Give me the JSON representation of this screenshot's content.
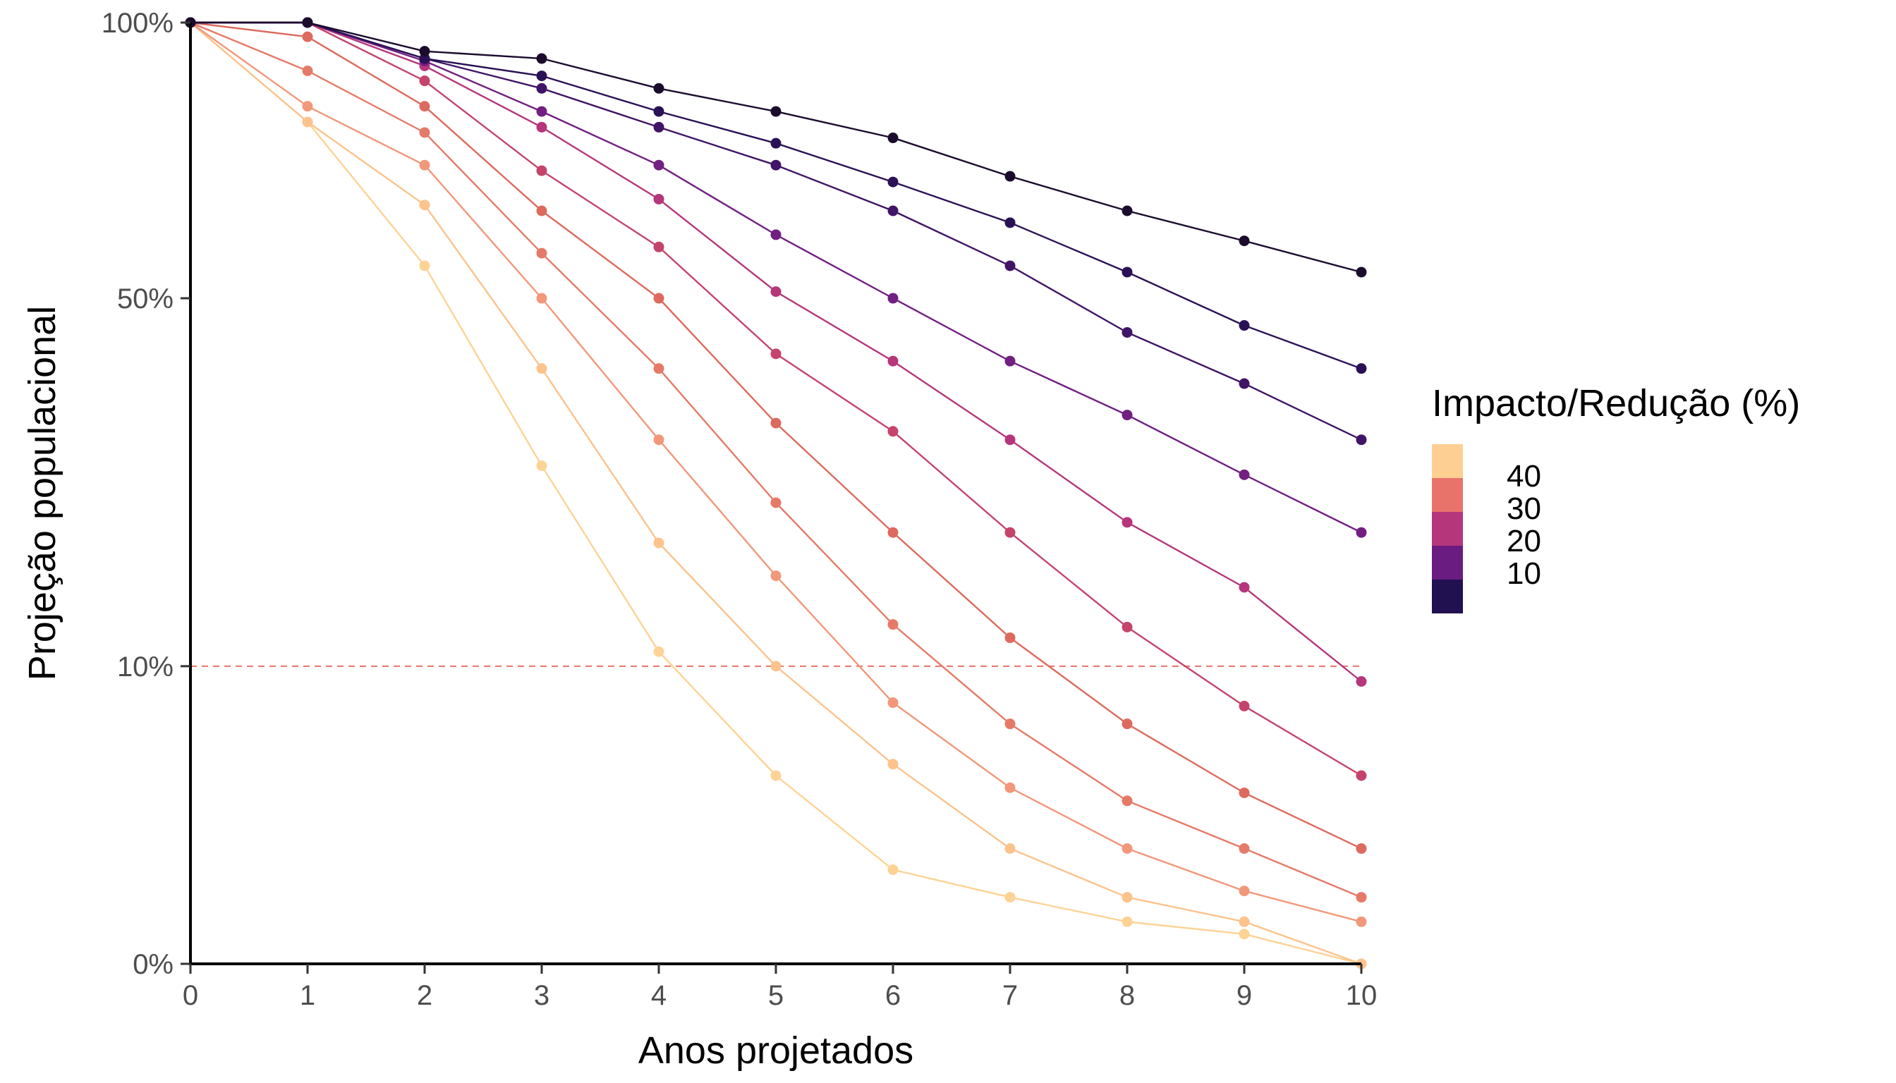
{
  "chart_data": {
    "type": "line",
    "xlabel": "Anos projetados",
    "ylabel": "Projeção populacional",
    "x": [
      0,
      1,
      2,
      3,
      4,
      5,
      6,
      7,
      8,
      9,
      10
    ],
    "xlim": [
      0,
      10
    ],
    "ylim": [
      0,
      100
    ],
    "x_ticks": [
      "0",
      "1",
      "2",
      "3",
      "4",
      "5",
      "6",
      "7",
      "8",
      "9",
      "10"
    ],
    "y_ticks": [
      {
        "value": 0,
        "label": "0%"
      },
      {
        "value": 10,
        "label": "10%"
      },
      {
        "value": 50,
        "label": "50%"
      },
      {
        "value": 100,
        "label": "100%"
      }
    ],
    "y_scale": "sqrt",
    "reference_line": {
      "y": 10,
      "style": "dashed",
      "color": "#e8736b"
    },
    "grid": false,
    "legend": {
      "title": "Impacto/Redução (%)",
      "placement": "right",
      "labels": [
        "40",
        "30",
        "20",
        "10"
      ],
      "colors": [
        "#fecf92",
        "#e8736b",
        "#b5367a",
        "#6a1c81",
        "#221150"
      ]
    },
    "series": [
      {
        "color": "#fdd395",
        "values": [
          100,
          80,
          55,
          28,
          11,
          4,
          1,
          0.5,
          0.2,
          0.1,
          0
        ]
      },
      {
        "color": "#fcc38d",
        "values": [
          100,
          80,
          65,
          40,
          20,
          10,
          4.5,
          1.5,
          0.5,
          0.2,
          0
        ]
      },
      {
        "color": "#f1987a",
        "values": [
          100,
          83,
          72,
          50,
          31,
          17,
          7.7,
          3.5,
          1.5,
          0.6,
          0.2
        ]
      },
      {
        "color": "#e57a68",
        "values": [
          100,
          90,
          78,
          57,
          40,
          24,
          13,
          6.5,
          3,
          1.5,
          0.5
        ]
      },
      {
        "color": "#dd6a5e",
        "values": [
          100,
          97,
          83,
          64,
          50,
          33,
          21,
          12,
          6.5,
          3.3,
          1.5
        ]
      },
      {
        "color": "#c4446b",
        "values": [
          100,
          100,
          88,
          71,
          58,
          42,
          32,
          21,
          12.8,
          7.5,
          4
        ]
      },
      {
        "color": "#b5367a",
        "values": [
          100,
          100,
          91,
          79,
          66,
          51,
          41,
          31,
          22,
          16,
          9
        ]
      },
      {
        "color": "#711f81",
        "values": [
          100,
          100,
          92,
          82,
          72,
          60,
          50,
          41,
          34,
          27,
          21
        ]
      },
      {
        "color": "#401466",
        "values": [
          100,
          100,
          92.5,
          86.5,
          79,
          72,
          64,
          55,
          45,
          38,
          31
        ]
      },
      {
        "color": "#2a1156",
        "values": [
          100,
          100,
          92.5,
          89,
          82,
          76,
          69,
          62,
          54,
          46,
          40
        ]
      },
      {
        "color": "#1b0c2e",
        "values": [
          100,
          100,
          94,
          92.5,
          86.5,
          82,
          77,
          70,
          64,
          59,
          54
        ]
      }
    ]
  }
}
